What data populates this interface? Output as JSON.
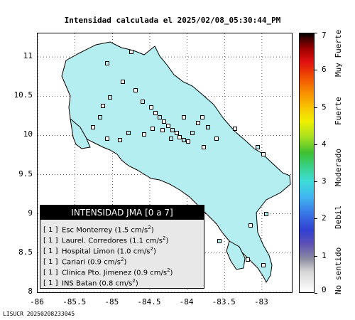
{
  "title": "Intensidad calculada el 2025/02/08_05:30:44_PM",
  "footer_code": "LISUCR 20250208233045",
  "map": {
    "x_ticks": [
      "-86",
      "-85.5",
      "-85",
      "-84.5",
      "-84",
      "-83.5",
      "-83"
    ],
    "y_ticks": [
      "11",
      "10.5",
      "10",
      "9.5",
      "9",
      "8.5",
      "8"
    ],
    "lon_range": [
      -86,
      -82.6
    ],
    "lat_range": [
      8,
      11.3
    ],
    "grid": true,
    "land_color": "#b4eef0",
    "outline_color": "#000000",
    "station_marker": "square"
  },
  "legend": {
    "header": "INTENSIDAD JMA [0 a 7]",
    "items": [
      {
        "level": "[ 1 ]",
        "name": "Esc Monterrey",
        "value": "(1.5 cm/s",
        "unit_sup": "2",
        "close": ")"
      },
      {
        "level": "[ 1 ]",
        "name": "Laurel. Corredores",
        "value": "(1.1 cm/s",
        "unit_sup": "2",
        "close": ")"
      },
      {
        "level": "[ 1 ]",
        "name": "Hospital Limon",
        "value": "(1.0 cm/s",
        "unit_sup": "2",
        "close": ")"
      },
      {
        "level": "[ 1 ]",
        "name": "Cariari",
        "value": "(0.9 cm/s",
        "unit_sup": "2",
        "close": ")"
      },
      {
        "level": "[ 1 ]",
        "name": "Clinica Pto. Jimenez",
        "value": "(0.9 cm/s",
        "unit_sup": "2",
        "close": ")"
      },
      {
        "level": "[ 1 ]",
        "name": "INS Batan",
        "value": "(0.8 cm/s",
        "unit_sup": "2",
        "close": ")"
      }
    ]
  },
  "colorbar": {
    "ticks": [
      "7",
      "6",
      "5",
      "4",
      "3",
      "2",
      "1",
      "0"
    ],
    "categories": [
      "Muy Fuerte",
      "Fuerte",
      "Moderado",
      "Debil",
      "No sentido"
    ]
  }
}
